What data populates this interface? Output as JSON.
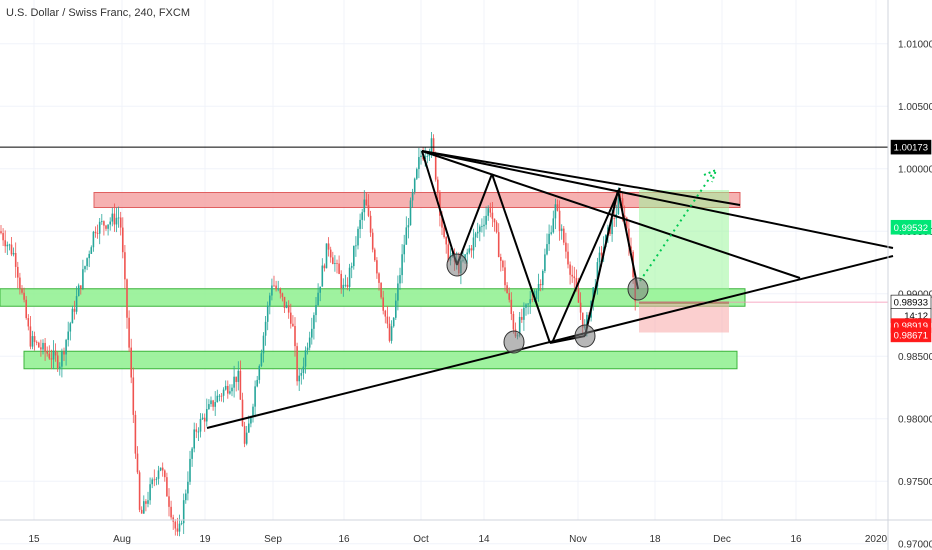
{
  "chart_data": {
    "type": "candlestick",
    "title": "U.S. Dollar / Swiss Franc, 240, FXCM",
    "y_ticks": [
      "1.01000",
      "1.00500",
      "1.00000",
      "0.99500",
      "0.99000",
      "0.98500",
      "0.98000",
      "0.97500",
      "0.97000"
    ],
    "ylim": [
      0.9695,
      1.0135
    ],
    "x_ticks": [
      "15",
      "Aug",
      "19",
      "Sep",
      "16",
      "Oct",
      "14",
      "Nov",
      "18",
      "Dec",
      "16",
      "2020"
    ],
    "price_tags": [
      {
        "label": "1.00173",
        "value": 1.00173,
        "style": "black"
      },
      {
        "label": "0.99532",
        "value": 0.99532,
        "style": "green"
      },
      {
        "label": "0.98933",
        "value": 0.98933,
        "style": "outline"
      },
      {
        "label": "14:12",
        "value": 0.98825,
        "style": "outline"
      },
      {
        "label": "0.98919",
        "value": 0.98745,
        "style": "red"
      },
      {
        "label": "0.98671",
        "value": 0.98671,
        "style": "red"
      }
    ],
    "close_price": 0.98933,
    "horizontal_line": 1.00173,
    "zones": [
      {
        "name": "resistance",
        "color": "#f4a3a3",
        "y_top": 0.9981,
        "y_bottom": 0.9969
      },
      {
        "name": "support-upper",
        "color": "#8ef08e",
        "y_top": 0.9904,
        "y_bottom": 0.989
      },
      {
        "name": "support-lower",
        "color": "#8ef08e",
        "y_top": 0.9854,
        "y_bottom": 0.984
      }
    ],
    "position": {
      "entry": 0.9893,
      "target": 0.9983,
      "stop": 0.9869
    },
    "colors": {
      "up": "#26a69a",
      "down": "#ef5350",
      "pattern": "#000000",
      "target_line": "#00c853"
    }
  }
}
